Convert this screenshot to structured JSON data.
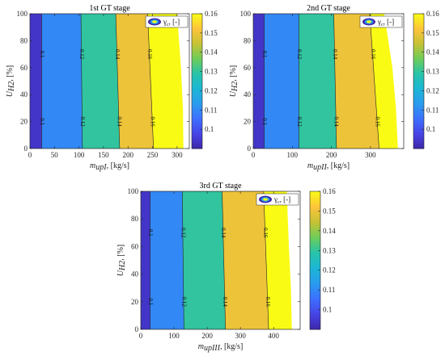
{
  "colormap": [
    "#3e26a8",
    "#4744e6",
    "#3d6ffe",
    "#2a9bee",
    "#1cb6d6",
    "#27c3aa",
    "#6ccd5a",
    "#c5c235",
    "#fdc43c",
    "#f9fb15"
  ],
  "chart_data": [
    {
      "type": "heatmap",
      "title": "1st GT stage",
      "xlabel": "m",
      "xlabel_sub": "upI",
      "xlabel_unit": ", [kg/s]",
      "ylabel": "U",
      "ylabel_sub": "H2",
      "ylabel_unit": ", [%]",
      "xlim": [
        0,
        325
      ],
      "ylim": [
        0,
        100
      ],
      "xticks": [
        "0",
        "50",
        "100",
        "150",
        "200",
        "250",
        "300"
      ],
      "yticks": [
        "0",
        "20",
        "40",
        "60",
        "80",
        "100"
      ],
      "colorbar": {
        "range": [
          0.09,
          0.16
        ],
        "ticks": [
          "0.1",
          "0.11",
          "0.12",
          "0.13",
          "0.14",
          "0.15",
          "0.16"
        ]
      },
      "legend": {
        "label": "γ",
        "sub": "c",
        "suffix": ", [-]"
      },
      "bands": [
        {
          "x_start": 0,
          "x_end_bottom": 24,
          "x_end_top": 24,
          "value": 0.094
        },
        {
          "x_start_bottom": 24,
          "x_start_top": 24,
          "x_end_bottom": 107,
          "x_end_top": 104,
          "value": 0.11
        },
        {
          "x_start_bottom": 107,
          "x_start_top": 104,
          "x_end_bottom": 183,
          "x_end_top": 175,
          "value": 0.13
        },
        {
          "x_start_bottom": 183,
          "x_start_top": 175,
          "x_end_bottom": 252,
          "x_end_top": 240,
          "value": 0.15
        },
        {
          "x_start_bottom": 252,
          "x_start_top": 240,
          "x_end_bottom": 313,
          "x_end_top": 300,
          "value": 0.16
        }
      ],
      "domain_edge": [
        [
          0,
          313
        ],
        [
          30,
          312
        ],
        [
          60,
          308
        ],
        [
          85,
          303
        ],
        [
          100,
          301
        ]
      ],
      "contours": [
        {
          "label": "0.1",
          "x_bottom": 24,
          "x_top": 24
        },
        {
          "label": "0.12",
          "x_bottom": 107,
          "x_top": 104
        },
        {
          "label": "0.14",
          "x_bottom": 183,
          "x_top": 175
        },
        {
          "label": "0.16",
          "x_bottom": 252,
          "x_top": 240
        }
      ]
    },
    {
      "type": "heatmap",
      "title": "2nd GT stage",
      "xlabel": "m",
      "xlabel_sub": "upII",
      "xlabel_unit": ", [kg/s]",
      "ylabel": "U",
      "ylabel_sub": "H2",
      "ylabel_unit": ", [%]",
      "xlim": [
        0,
        385
      ],
      "ylim": [
        0,
        100
      ],
      "xticks": [
        "0",
        "100",
        "200",
        "300"
      ],
      "yticks": [
        "0",
        "20",
        "40",
        "60",
        "80",
        "100"
      ],
      "colorbar": {
        "range": [
          0.09,
          0.16
        ],
        "ticks": [
          "0.1",
          "0.11",
          "0.12",
          "0.13",
          "0.14",
          "0.15",
          "0.16"
        ]
      },
      "legend": {
        "label": "γ",
        "sub": "c",
        "suffix": ", [-]"
      },
      "bands": [
        {
          "x_start": 0,
          "x_end_bottom": 28,
          "x_end_top": 28,
          "value": 0.094
        },
        {
          "x_start_bottom": 28,
          "x_start_top": 28,
          "x_end_bottom": 117,
          "x_end_top": 117,
          "value": 0.11
        },
        {
          "x_start_bottom": 117,
          "x_start_top": 117,
          "x_end_bottom": 213,
          "x_end_top": 206,
          "value": 0.13
        },
        {
          "x_start_bottom": 213,
          "x_start_top": 206,
          "x_end_bottom": 322,
          "x_end_top": 298,
          "value": 0.15
        },
        {
          "x_start_bottom": 322,
          "x_start_top": 298,
          "x_end_bottom": 370,
          "x_end_top": 335,
          "value": 0.16
        }
      ],
      "domain_edge": [
        [
          0,
          370
        ],
        [
          30,
          365
        ],
        [
          60,
          356
        ],
        [
          85,
          343
        ],
        [
          100,
          335
        ]
      ],
      "contours": [
        {
          "label": "0.1",
          "x_bottom": 28,
          "x_top": 28
        },
        {
          "label": "0.12",
          "x_bottom": 117,
          "x_top": 117
        },
        {
          "label": "0.14",
          "x_bottom": 213,
          "x_top": 206
        },
        {
          "label": "0.16",
          "x_bottom": 322,
          "x_top": 298
        }
      ]
    },
    {
      "type": "heatmap",
      "title": "3rd GT stage",
      "xlabel": "m",
      "xlabel_sub": "upIII",
      "xlabel_unit": ", [kg/s]",
      "ylabel": "U",
      "ylabel_sub": "H2",
      "ylabel_unit": ", [%]",
      "xlim": [
        0,
        480
      ],
      "ylim": [
        0,
        100
      ],
      "xticks": [
        "0",
        "100",
        "200",
        "300",
        "400"
      ],
      "yticks": [
        "0",
        "20",
        "40",
        "60",
        "80",
        "100"
      ],
      "colorbar": {
        "range": [
          0.09,
          0.16
        ],
        "ticks": [
          "0.1",
          "0.11",
          "0.12",
          "0.13",
          "0.14",
          "0.15",
          "0.16"
        ]
      },
      "legend": {
        "label": "γ",
        "sub": "c",
        "suffix": ", [-]"
      },
      "bands": [
        {
          "x_start": 0,
          "x_end_bottom": 28,
          "x_end_top": 28,
          "value": 0.094
        },
        {
          "x_start_bottom": 28,
          "x_start_top": 28,
          "x_end_bottom": 130,
          "x_end_top": 125,
          "value": 0.11
        },
        {
          "x_start_bottom": 130,
          "x_start_top": 125,
          "x_end_bottom": 255,
          "x_end_top": 245,
          "value": 0.13
        },
        {
          "x_start_bottom": 255,
          "x_start_top": 245,
          "x_end_bottom": 385,
          "x_end_top": 370,
          "value": 0.15
        },
        {
          "x_start_bottom": 385,
          "x_start_top": 370,
          "x_end_bottom": 455,
          "x_end_top": 440,
          "value": 0.16
        }
      ],
      "domain_edge": [
        [
          0,
          455
        ],
        [
          30,
          452
        ],
        [
          60,
          446
        ],
        [
          85,
          442
        ],
        [
          100,
          440
        ]
      ],
      "contours": [
        {
          "label": "0.1",
          "x_bottom": 28,
          "x_top": 28
        },
        {
          "label": "0.12",
          "x_bottom": 130,
          "x_top": 125
        },
        {
          "label": "0.14",
          "x_bottom": 255,
          "x_top": 245
        },
        {
          "label": "0.16",
          "x_bottom": 385,
          "x_top": 370
        }
      ]
    }
  ]
}
